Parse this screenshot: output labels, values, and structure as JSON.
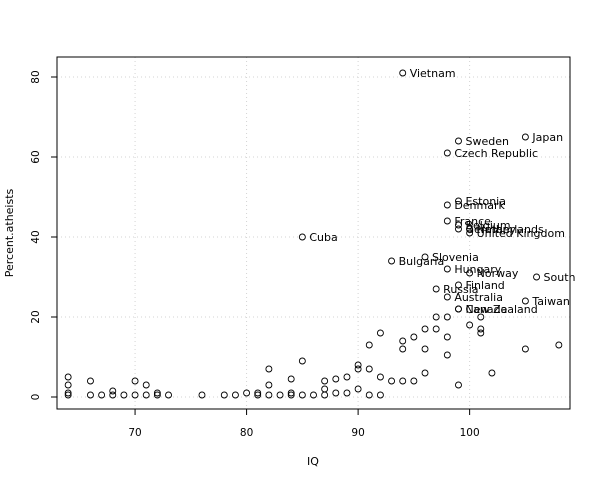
{
  "chart_data": {
    "type": "scatter",
    "title": "",
    "xlabel": "IQ",
    "ylabel": "Percent.atheists",
    "xlim": [
      63,
      109
    ],
    "ylim": [
      -3,
      85
    ],
    "x_ticks": [
      70,
      80,
      90,
      100
    ],
    "y_ticks": [
      0,
      20,
      40,
      60,
      80
    ],
    "grid": true,
    "marker": "open-circle",
    "labeled_points": [
      {
        "label": "Vietnam",
        "x": 94,
        "y": 81
      },
      {
        "label": "Japan",
        "x": 105,
        "y": 65
      },
      {
        "label": "Sweden",
        "x": 99,
        "y": 64
      },
      {
        "label": "Czech Republic",
        "x": 98,
        "y": 61
      },
      {
        "label": "Estonia",
        "x": 99,
        "y": 49
      },
      {
        "label": "Denmark",
        "x": 98,
        "y": 48
      },
      {
        "label": "France",
        "x": 98,
        "y": 44
      },
      {
        "label": "Belgium",
        "x": 99,
        "y": 43
      },
      {
        "label": "Netherlands",
        "x": 100,
        "y": 42
      },
      {
        "label": "Germany",
        "x": 99,
        "y": 42
      },
      {
        "label": "United Kingdom",
        "x": 100,
        "y": 41
      },
      {
        "label": "Cuba",
        "x": 85,
        "y": 40
      },
      {
        "label": "Slovenia",
        "x": 96,
        "y": 35
      },
      {
        "label": "Bulgaria",
        "x": 93,
        "y": 34
      },
      {
        "label": "Hungary",
        "x": 98,
        "y": 32
      },
      {
        "label": "Norway",
        "x": 100,
        "y": 31
      },
      {
        "label": "South",
        "x": 106,
        "y": 30
      },
      {
        "label": "Finland",
        "x": 99,
        "y": 28
      },
      {
        "label": "Russia",
        "x": 97,
        "y": 27
      },
      {
        "label": "Australia",
        "x": 98,
        "y": 25
      },
      {
        "label": "Taiwan",
        "x": 105,
        "y": 24
      },
      {
        "label": "New Zealand",
        "x": 99,
        "y": 22
      },
      {
        "label": "Canada",
        "x": 99,
        "y": 22
      }
    ],
    "unlabeled_points": [
      {
        "x": 64,
        "y": 5
      },
      {
        "x": 64,
        "y": 3
      },
      {
        "x": 64,
        "y": 1
      },
      {
        "x": 64,
        "y": 0.5
      },
      {
        "x": 66,
        "y": 4
      },
      {
        "x": 66,
        "y": 0.5
      },
      {
        "x": 67,
        "y": 0.5
      },
      {
        "x": 68,
        "y": 0.5
      },
      {
        "x": 68,
        "y": 1.5
      },
      {
        "x": 69,
        "y": 0.5
      },
      {
        "x": 70,
        "y": 0.5
      },
      {
        "x": 70,
        "y": 4
      },
      {
        "x": 71,
        "y": 3
      },
      {
        "x": 71,
        "y": 0.5
      },
      {
        "x": 72,
        "y": 0.5
      },
      {
        "x": 72,
        "y": 1
      },
      {
        "x": 73,
        "y": 0.5
      },
      {
        "x": 76,
        "y": 0.5
      },
      {
        "x": 78,
        "y": 0.5
      },
      {
        "x": 79,
        "y": 0.5
      },
      {
        "x": 80,
        "y": 1
      },
      {
        "x": 81,
        "y": 0.5
      },
      {
        "x": 81,
        "y": 1
      },
      {
        "x": 82,
        "y": 7
      },
      {
        "x": 82,
        "y": 3
      },
      {
        "x": 82,
        "y": 0.5
      },
      {
        "x": 83,
        "y": 0.5
      },
      {
        "x": 84,
        "y": 4.5
      },
      {
        "x": 84,
        "y": 0.5
      },
      {
        "x": 84,
        "y": 1
      },
      {
        "x": 85,
        "y": 9
      },
      {
        "x": 85,
        "y": 0.5
      },
      {
        "x": 86,
        "y": 0.5
      },
      {
        "x": 87,
        "y": 4
      },
      {
        "x": 87,
        "y": 2
      },
      {
        "x": 87,
        "y": 0.5
      },
      {
        "x": 88,
        "y": 4.5
      },
      {
        "x": 88,
        "y": 1
      },
      {
        "x": 89,
        "y": 5
      },
      {
        "x": 89,
        "y": 1
      },
      {
        "x": 90,
        "y": 8
      },
      {
        "x": 90,
        "y": 7
      },
      {
        "x": 90,
        "y": 2
      },
      {
        "x": 91,
        "y": 13
      },
      {
        "x": 91,
        "y": 7
      },
      {
        "x": 91,
        "y": 0.5
      },
      {
        "x": 92,
        "y": 16
      },
      {
        "x": 92,
        "y": 5
      },
      {
        "x": 92,
        "y": 0.5
      },
      {
        "x": 93,
        "y": 4
      },
      {
        "x": 94,
        "y": 14
      },
      {
        "x": 94,
        "y": 12
      },
      {
        "x": 94,
        "y": 4
      },
      {
        "x": 95,
        "y": 15
      },
      {
        "x": 95,
        "y": 4
      },
      {
        "x": 96,
        "y": 17
      },
      {
        "x": 96,
        "y": 12
      },
      {
        "x": 96,
        "y": 6
      },
      {
        "x": 97,
        "y": 20
      },
      {
        "x": 97,
        "y": 17
      },
      {
        "x": 98,
        "y": 20
      },
      {
        "x": 98,
        "y": 15
      },
      {
        "x": 98,
        "y": 10.5
      },
      {
        "x": 99,
        "y": 3
      },
      {
        "x": 100,
        "y": 18
      },
      {
        "x": 101,
        "y": 20
      },
      {
        "x": 101,
        "y": 17
      },
      {
        "x": 101,
        "y": 16
      },
      {
        "x": 102,
        "y": 6
      },
      {
        "x": 105,
        "y": 12
      },
      {
        "x": 108,
        "y": 13
      }
    ]
  }
}
